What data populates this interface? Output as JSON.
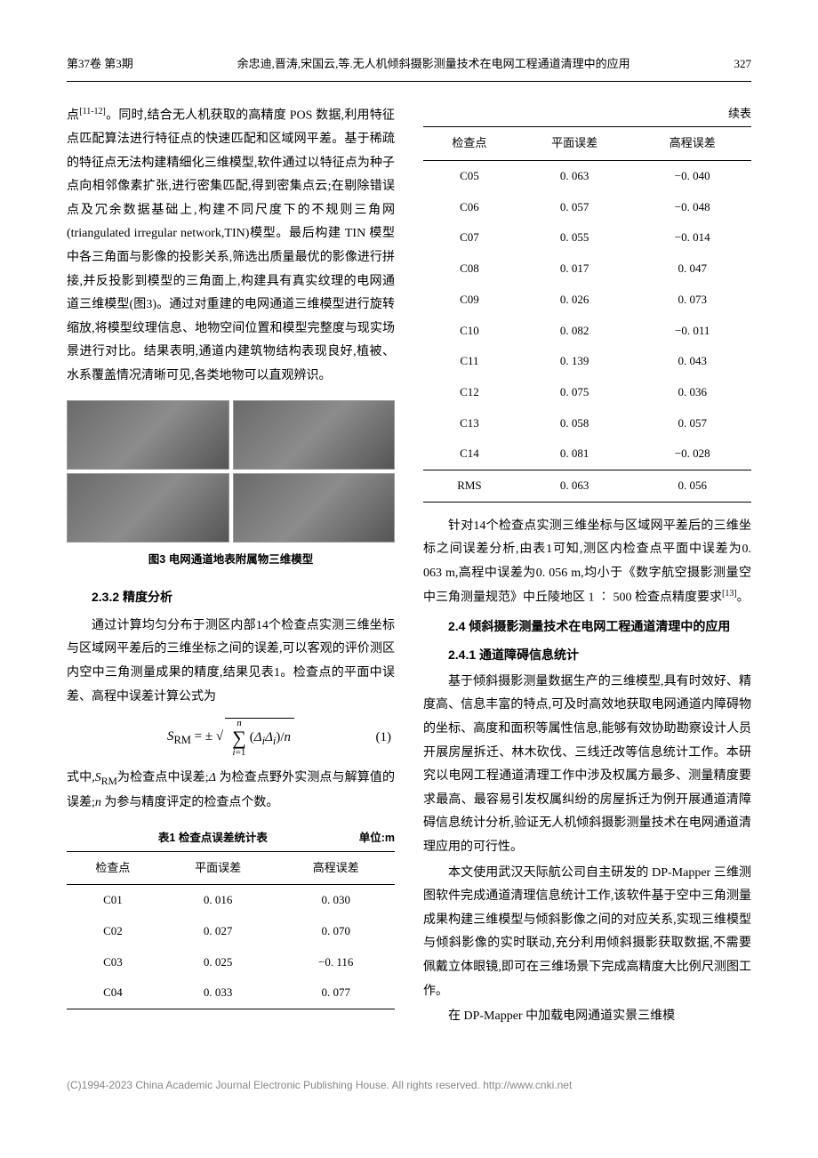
{
  "header": {
    "volume": "第37卷  第3期",
    "running_title": "余忠迪,晋涛,宋国云,等.无人机倾斜摄影测量技术在电网工程通道清理中的应用",
    "page": "327"
  },
  "left": {
    "p1": "点[11-12]。同时,结合无人机获取的高精度 POS 数据,利用特征点匹配算法进行特征点的快速匹配和区域网平差。基于稀疏的特征点无法构建精细化三维模型,软件通过以特征点为种子点向相邻像素扩张,进行密集匹配,得到密集点云;在剔除错误点及冗余数据基础上,构建不同尺度下的不规则三角网(triangulated irregular network,TIN)模型。最后构建 TIN 模型中各三角面与影像的投影关系,筛选出质量最优的影像进行拼接,并反投影到模型的三角面上,构建具有真实纹理的电网通道三维模型(图3)。通过对重建的电网通道三维模型进行旋转缩放,将模型纹理信息、地物空间位置和模型完整度与现实场景进行对比。结果表明,通道内建筑物结构表现良好,植被、水系覆盖情况清晰可见,各类地物可以直观辨识。",
    "fig3_caption": "图3  电网通道地表附属物三维模型",
    "h232": "2.3.2  精度分析",
    "p2": "通过计算均匀分布于测区内部14个检查点实测三维坐标与区域网平差后的三维坐标之间的误差,可以客观的评价测区内空中三角测量成果的精度,结果见表1。检查点的平面中误差、高程中误差计算公式为",
    "formula_label": "(1)",
    "p3_prefix": "式中,",
    "p3_srm": "S",
    "p3_rm": "RM",
    "p3_a": "为检查点中误差;",
    "p3_delta": "Δ",
    "p3_b": " 为检查点野外实测点与解算值的误差;",
    "p3_n": "n",
    "p3_c": " 为参与精度评定的检查点个数。",
    "t1_caption": "表1  检查点误差统计表",
    "t1_unit": "单位:m",
    "t1_cols": [
      "检查点",
      "平面误差",
      "高程误差"
    ],
    "t1_rows": [
      [
        "C01",
        "0. 016",
        "0. 030"
      ],
      [
        "C02",
        "0. 027",
        "0. 070"
      ],
      [
        "C03",
        "0. 025",
        "−0. 116"
      ],
      [
        "C04",
        "0. 033",
        "0. 077"
      ]
    ]
  },
  "right": {
    "t1_cont": "续表",
    "t1_cols": [
      "检查点",
      "平面误差",
      "高程误差"
    ],
    "t1_rows": [
      [
        "C05",
        "0. 063",
        "−0. 040"
      ],
      [
        "C06",
        "0. 057",
        "−0. 048"
      ],
      [
        "C07",
        "0. 055",
        "−0. 014"
      ],
      [
        "C08",
        "0. 017",
        "0. 047"
      ],
      [
        "C09",
        "0. 026",
        "0. 073"
      ],
      [
        "C10",
        "0. 082",
        "−0. 011"
      ],
      [
        "C11",
        "0. 139",
        "0. 043"
      ],
      [
        "C12",
        "0. 075",
        "0. 036"
      ],
      [
        "C13",
        "0. 058",
        "0. 057"
      ],
      [
        "C14",
        "0. 081",
        "−0. 028"
      ]
    ],
    "t1_rms": [
      "RMS",
      "0. 063",
      "0. 056"
    ],
    "p4": "针对14个检查点实测三维坐标与区域网平差后的三维坐标之间误差分析,由表1可知,测区内检查点平面中误差为0. 063 m,高程中误差为0. 056 m,均小于《数字航空摄影测量空中三角测量规范》中丘陵地区 1 ∶ 500 检查点精度要求[13]。",
    "h24": "2.4  倾斜摄影测量技术在电网工程通道清理中的应用",
    "h241": "2.4.1  通道障碍信息统计",
    "p5": "基于倾斜摄影测量数据生产的三维模型,具有时效好、精度高、信息丰富的特点,可及时高效地获取电网通道内障碍物的坐标、高度和面积等属性信息,能够有效协助勘察设计人员开展房屋拆迁、林木砍伐、三线迁改等信息统计工作。本研究以电网工程通道清理工作中涉及权属方最多、测量精度要求最高、最容易引发权属纠纷的房屋拆迁为例开展通道清障碍信息统计分析,验证无人机倾斜摄影测量技术在电网通道清理应用的可行性。",
    "p6": "本文使用武汉天际航公司自主研发的 DP-Mapper 三维测图软件完成通道清理信息统计工作,该软件基于空中三角测量成果构建三维模型与倾斜影像之间的对应关系,实现三维模型与倾斜影像的实时联动,充分利用倾斜摄影获取数据,不需要佩戴立体眼镜,即可在三维场景下完成高精度大比例尺测图工作。",
    "p7": "在 DP-Mapper 中加载电网通道实景三维模"
  },
  "footer": "(C)1994-2023 China Academic Journal Electronic Publishing House. All rights reserved.    http://www.cnki.net"
}
